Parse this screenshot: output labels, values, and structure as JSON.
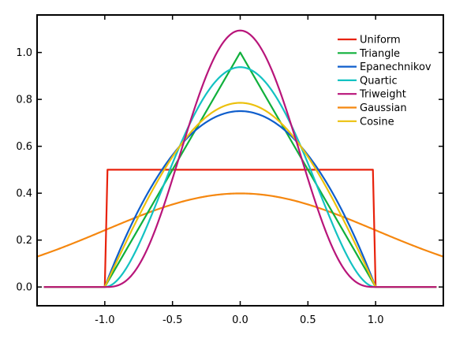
{
  "chart_data": {
    "type": "line",
    "title": "",
    "xlabel": "",
    "ylabel": "",
    "xlim": [
      -1.5,
      1.5
    ],
    "ylim": [
      -0.08,
      1.16
    ],
    "xticks": [
      -1.0,
      -0.5,
      0.0,
      0.5,
      1.0
    ],
    "xtick_labels": [
      "-1.0",
      "-0.5",
      "0.0",
      "0.5",
      "1.0"
    ],
    "yticks": [
      0.0,
      0.2,
      0.4,
      0.6,
      0.8,
      1.0
    ],
    "ytick_labels": [
      "0.0",
      "0.2",
      "0.4",
      "0.6",
      "0.8",
      "1.0"
    ],
    "grid": false,
    "legend_position": "top-right",
    "series": [
      {
        "name": "Uniform",
        "kernel": "uniform",
        "color": "#e8220c"
      },
      {
        "name": "Triangle",
        "kernel": "triangle",
        "color": "#10b03c"
      },
      {
        "name": "Epanechnikov",
        "kernel": "epanechnikov",
        "color": "#0f5ecc"
      },
      {
        "name": "Quartic",
        "kernel": "quartic",
        "color": "#13c2c2"
      },
      {
        "name": "Triweight",
        "kernel": "triweight",
        "color": "#b8157a"
      },
      {
        "name": "Gaussian",
        "kernel": "gaussian",
        "color": "#f5870f"
      },
      {
        "name": "Cosine",
        "kernel": "cosine",
        "color": "#ecc10e"
      }
    ]
  }
}
